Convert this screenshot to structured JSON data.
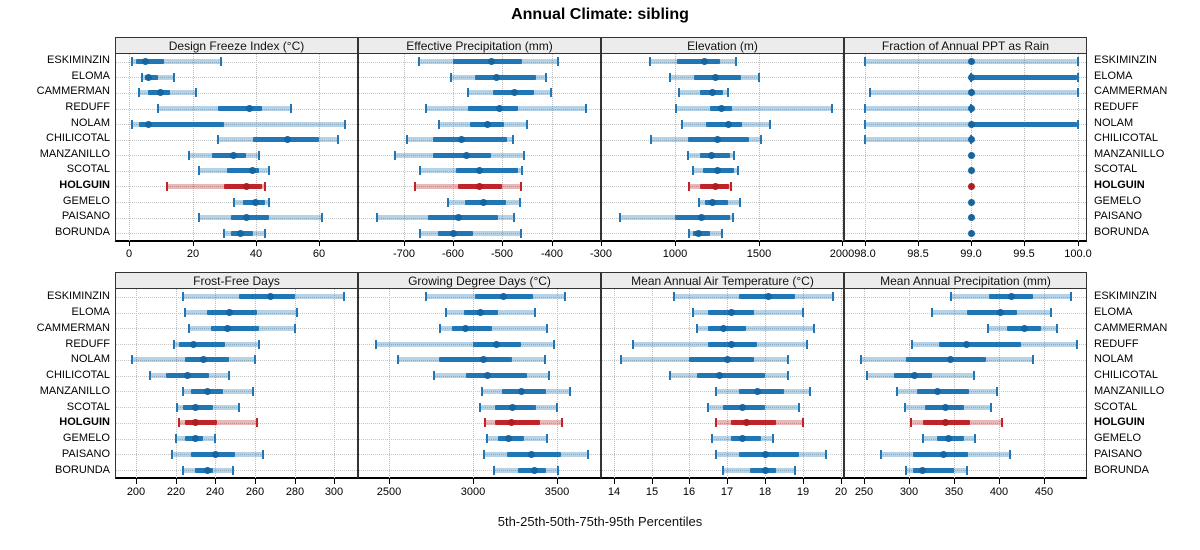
{
  "title": "Annual Climate: sibling",
  "caption": "5th-25th-50th-75th-95th Percentiles",
  "locations": [
    "ESKIMINZIN",
    "ELOMA",
    "CAMMERMAN",
    "REDUFF",
    "NOLAM",
    "CHILICOTAL",
    "MANZANILLO",
    "SCOTAL",
    "HOLGUIN",
    "GEMELO",
    "PAISANO",
    "BORUNDA"
  ],
  "highlight": "HOLGUIN",
  "colors": {
    "blue_band": "#2176b5",
    "blue_dot": "#17659e",
    "blue_light": "rgba(33,118,181,0.33)",
    "red_band": "#c02428",
    "red_dot": "#ae1d22",
    "red_light": "rgba(192,36,40,0.33)",
    "grid": "#bdbdbd",
    "header_bg": "#ececec"
  },
  "chart_data": [
    {
      "type": "percentile-dotplot",
      "title": "Design Freeze Index (°C)",
      "row": 0,
      "col": 0,
      "xlim": [
        -4.2,
        71.9
      ],
      "ticks": [
        0,
        20,
        40,
        60
      ],
      "tick_labels": [
        "0",
        "20",
        "40",
        "60"
      ],
      "percentile_keys": [
        "p5",
        "p25",
        "p50",
        "p75",
        "p95"
      ],
      "values": [
        [
          1,
          2,
          5,
          11,
          29
        ],
        [
          4,
          5,
          6,
          9,
          14
        ],
        [
          3,
          6,
          10,
          13,
          21
        ],
        [
          9,
          28,
          38,
          42,
          51
        ],
        [
          1,
          3,
          6,
          30,
          68
        ],
        [
          28,
          39,
          50,
          60,
          66
        ],
        [
          19,
          26,
          33,
          37,
          41
        ],
        [
          22,
          31,
          39,
          41,
          44
        ],
        [
          12,
          30,
          37,
          42,
          43
        ],
        [
          33,
          36,
          40,
          43,
          44
        ],
        [
          22,
          32,
          37,
          44,
          61
        ],
        [
          30,
          32,
          35,
          39,
          43
        ]
      ]
    },
    {
      "type": "percentile-dotplot",
      "title": "Effective Precipitation (mm)",
      "row": 0,
      "col": 1,
      "xlim": [
        -791,
        -302
      ],
      "ticks": [
        -700,
        -600,
        -500,
        -400,
        -300
      ],
      "tick_labels": [
        "-700",
        "-600",
        "-500",
        "-400",
        "-300"
      ],
      "percentile_keys": [
        "p5",
        "p25",
        "p50",
        "p75",
        "p95"
      ],
      "values": [
        [
          -670,
          -600,
          -523,
          -460,
          -388
        ],
        [
          -605,
          -555,
          -512,
          -432,
          -412
        ],
        [
          -570,
          -520,
          -476,
          -436,
          -402
        ],
        [
          -655,
          -570,
          -505,
          -468,
          -330
        ],
        [
          -628,
          -565,
          -530,
          -496,
          -450
        ],
        [
          -694,
          -640,
          -584,
          -490,
          -479
        ],
        [
          -718,
          -640,
          -573,
          -523,
          -457
        ],
        [
          -668,
          -595,
          -546,
          -468,
          -460
        ],
        [
          -678,
          -590,
          -546,
          -501,
          -462
        ],
        [
          -610,
          -575,
          -539,
          -492,
          -464
        ],
        [
          -754,
          -650,
          -590,
          -509,
          -476
        ],
        [
          -667,
          -630,
          -600,
          -559,
          -463
        ]
      ]
    },
    {
      "type": "percentile-dotplot",
      "title": "Elevation (m)",
      "row": 0,
      "col": 2,
      "xlim": [
        560,
        2006
      ],
      "ticks": [
        1000,
        1500,
        2000
      ],
      "tick_labels": [
        "1000",
        "1500",
        "2000"
      ],
      "percentile_keys": [
        "p5",
        "p25",
        "p50",
        "p75",
        "p95"
      ],
      "values": [
        [
          850,
          1010,
          1175,
          1270,
          1363
        ],
        [
          965,
          1110,
          1238,
          1395,
          1500
        ],
        [
          1020,
          1150,
          1222,
          1288,
          1317
        ],
        [
          1006,
          1208,
          1274,
          1337,
          1938
        ],
        [
          1040,
          1185,
          1317,
          1403,
          1570
        ],
        [
          855,
          1076,
          1254,
          1440,
          1512
        ],
        [
          1076,
          1149,
          1218,
          1330,
          1353
        ],
        [
          1105,
          1168,
          1254,
          1350,
          1373
        ],
        [
          1079,
          1149,
          1238,
          1320,
          1333
        ],
        [
          1139,
          1179,
          1224,
          1315,
          1387
        ],
        [
          667,
          1000,
          1155,
          1330,
          1343
        ],
        [
          1083,
          1105,
          1139,
          1208,
          1278
        ]
      ]
    },
    {
      "type": "percentile-dotplot",
      "title": "Fraction of Annual PPT as Rain",
      "row": 0,
      "col": 3,
      "xlim": [
        97.81,
        100.08
      ],
      "ticks": [
        98.0,
        98.5,
        99.0,
        99.5,
        100.0
      ],
      "tick_labels": [
        "98.0",
        "98.5",
        "99.0",
        "99.5",
        "100.0"
      ],
      "percentile_keys": [
        "p5",
        "p25",
        "p50",
        "p75",
        "p95"
      ],
      "values": [
        [
          98.0,
          99.0,
          99.0,
          99.0,
          100.0
        ],
        [
          99.0,
          99.0,
          99.0,
          100.0,
          100.0
        ],
        [
          98.05,
          99.0,
          99.0,
          99.0,
          100.0
        ],
        [
          98.0,
          99.0,
          99.0,
          99.0,
          99.0
        ],
        [
          98.0,
          99.0,
          99.0,
          100.0,
          100.0
        ],
        [
          98.0,
          99.0,
          99.0,
          99.0,
          99.0
        ],
        [
          99.0,
          99.0,
          99.0,
          99.0,
          99.0
        ],
        [
          99.0,
          99.0,
          99.0,
          99.0,
          99.0
        ],
        [
          99.0,
          99.0,
          99.0,
          99.0,
          99.0
        ],
        [
          99.0,
          99.0,
          99.0,
          99.0,
          99.0
        ],
        [
          99.0,
          99.0,
          99.0,
          99.0,
          99.0
        ],
        [
          99.0,
          99.0,
          99.0,
          99.0,
          99.0
        ]
      ]
    },
    {
      "type": "percentile-dotplot",
      "title": "Frost-Free Days",
      "row": 1,
      "col": 0,
      "xlim": [
        190,
        311.5
      ],
      "ticks": [
        200,
        220,
        240,
        260,
        280,
        300
      ],
      "tick_labels": [
        "200",
        "220",
        "240",
        "260",
        "280",
        "300"
      ],
      "percentile_keys": [
        "p5",
        "p25",
        "p50",
        "p75",
        "p95"
      ],
      "values": [
        [
          224,
          252,
          268,
          280,
          305
        ],
        [
          225,
          236,
          247,
          261,
          281
        ],
        [
          227,
          238,
          246,
          262,
          280
        ],
        [
          219,
          222,
          229,
          245,
          262
        ],
        [
          198,
          225,
          234,
          247,
          260
        ],
        [
          207,
          215,
          226,
          237,
          247
        ],
        [
          224,
          228,
          236,
          244,
          259
        ],
        [
          221,
          224,
          230,
          239,
          252
        ],
        [
          222,
          225,
          230,
          241,
          261
        ],
        [
          220,
          225,
          230,
          234,
          240
        ],
        [
          218,
          228,
          240,
          250,
          264
        ],
        [
          224,
          230,
          236,
          239,
          249
        ]
      ]
    },
    {
      "type": "percentile-dotplot",
      "title": "Growing Degree Days (°C)",
      "row": 1,
      "col": 1,
      "xlim": [
        2323,
        3753
      ],
      "ticks": [
        2500,
        3000,
        3500
      ],
      "tick_labels": [
        "2500",
        "3000",
        "3500"
      ],
      "percentile_keys": [
        "p5",
        "p25",
        "p50",
        "p75",
        "p95"
      ],
      "values": [
        [
          2720,
          3010,
          3180,
          3355,
          3545
        ],
        [
          2840,
          2945,
          3045,
          3150,
          3365
        ],
        [
          2805,
          2875,
          2955,
          3115,
          3440
        ],
        [
          2425,
          3000,
          3140,
          3285,
          3480
        ],
        [
          2555,
          2795,
          3060,
          3230,
          3425
        ],
        [
          2770,
          2955,
          3085,
          3320,
          3450
        ],
        [
          3055,
          3170,
          3285,
          3435,
          3575
        ],
        [
          3040,
          3130,
          3235,
          3375,
          3500
        ],
        [
          3070,
          3130,
          3230,
          3395,
          3525
        ],
        [
          3085,
          3150,
          3210,
          3305,
          3440
        ],
        [
          3065,
          3200,
          3345,
          3520,
          3680
        ],
        [
          3125,
          3265,
          3365,
          3435,
          3505
        ]
      ]
    },
    {
      "type": "percentile-dotplot",
      "title": "Mean Annual Air Temperature (°C)",
      "row": 1,
      "col": 2,
      "xlim": [
        13.69,
        20.06
      ],
      "ticks": [
        14,
        15,
        16,
        17,
        18,
        19,
        20
      ],
      "tick_labels": [
        "14",
        "15",
        "16",
        "17",
        "18",
        "19",
        "20"
      ],
      "percentile_keys": [
        "p5",
        "p25",
        "p50",
        "p75",
        "p95"
      ],
      "values": [
        [
          15.6,
          17.3,
          18.1,
          18.8,
          19.8
        ],
        [
          16.1,
          16.5,
          17.1,
          17.7,
          19.0
        ],
        [
          16.2,
          16.5,
          16.9,
          17.5,
          19.3
        ],
        [
          14.5,
          16.5,
          17.1,
          17.8,
          19.1
        ],
        [
          14.2,
          16.0,
          17.0,
          17.7,
          18.6
        ],
        [
          15.5,
          16.2,
          16.8,
          18.0,
          18.6
        ],
        [
          16.7,
          17.3,
          17.8,
          18.5,
          19.2
        ],
        [
          16.5,
          16.9,
          17.4,
          18.0,
          18.9
        ],
        [
          16.7,
          17.1,
          17.5,
          18.3,
          19.0
        ],
        [
          16.6,
          17.1,
          17.4,
          17.9,
          18.2
        ],
        [
          16.7,
          17.3,
          18.0,
          18.9,
          19.6
        ],
        [
          16.9,
          17.6,
          18.0,
          18.3,
          18.8
        ]
      ]
    },
    {
      "type": "percentile-dotplot",
      "title": "Mean Annual Precipitation (mm)",
      "row": 1,
      "col": 3,
      "xlim": [
        228.8,
        496.3
      ],
      "ticks": [
        250,
        300,
        350,
        400,
        450
      ],
      "tick_labels": [
        "250",
        "300",
        "350",
        "400",
        "450"
      ],
      "percentile_keys": [
        "p5",
        "p25",
        "p50",
        "p75",
        "p95"
      ],
      "values": [
        [
          346,
          389,
          414,
          437,
          480
        ],
        [
          325,
          364,
          401,
          420,
          457
        ],
        [
          388,
          409,
          428,
          446,
          464
        ],
        [
          303,
          333,
          364,
          424,
          486
        ],
        [
          247,
          296,
          346,
          385,
          438
        ],
        [
          253,
          283,
          306,
          325,
          372
        ],
        [
          287,
          309,
          331,
          366,
          398
        ],
        [
          295,
          318,
          340,
          361,
          391
        ],
        [
          302,
          315,
          340,
          367,
          403
        ],
        [
          315,
          331,
          344,
          361,
          373
        ],
        [
          269,
          304,
          338,
          365,
          412
        ],
        [
          296,
          304,
          315,
          350,
          364
        ]
      ]
    }
  ]
}
